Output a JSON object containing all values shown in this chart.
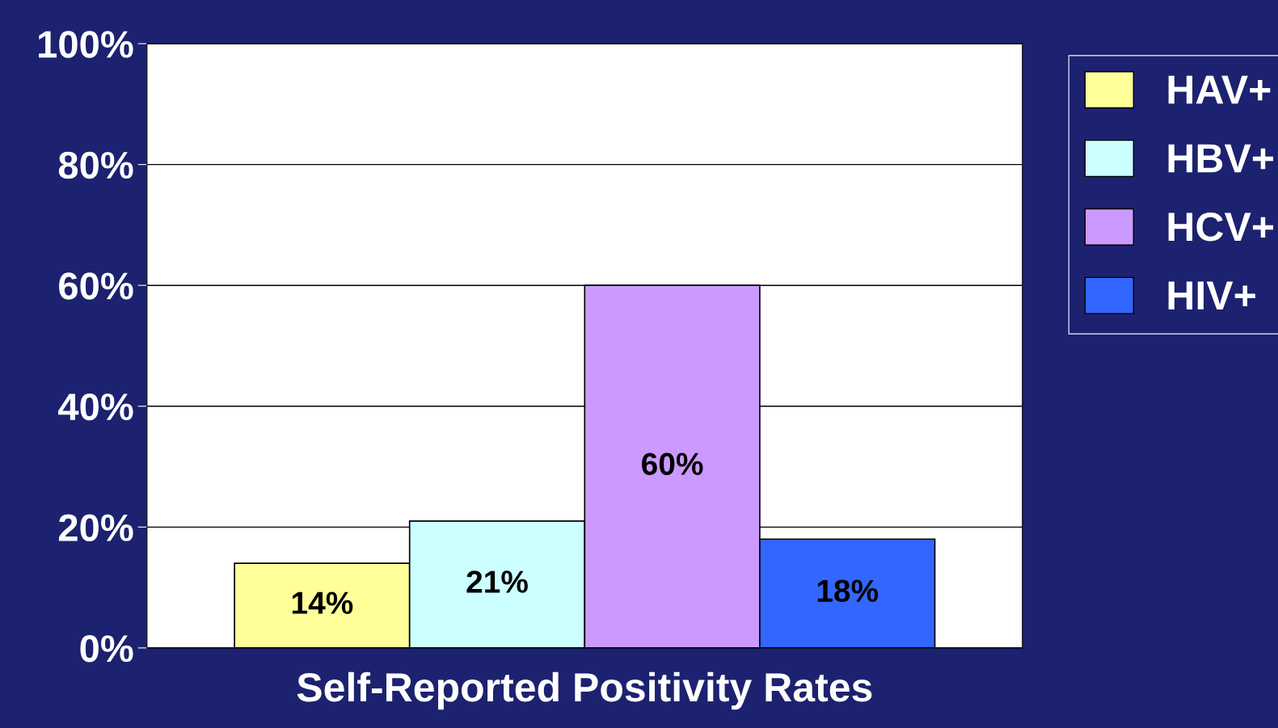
{
  "chart_data": {
    "type": "bar",
    "xlabel": "Self-Reported Positivity Rates",
    "categories": [
      null
    ],
    "series": [
      {
        "name": "HAV+",
        "color": "#ffff99",
        "values": [
          14
        ],
        "value_labels": [
          "14%"
        ]
      },
      {
        "name": "HBV+",
        "color": "#ccffff",
        "values": [
          21
        ],
        "value_labels": [
          "21%"
        ]
      },
      {
        "name": "HCV+",
        "color": "#cc99ff",
        "values": [
          60
        ],
        "value_labels": [
          "60%"
        ]
      },
      {
        "name": "HIV+",
        "color": "#3366ff",
        "values": [
          18
        ],
        "value_labels": [
          "18%"
        ]
      }
    ],
    "ylim": [
      0,
      100
    ],
    "yticks": [
      {
        "value": 0,
        "label": "0%"
      },
      {
        "value": 20,
        "label": "20%"
      },
      {
        "value": 40,
        "label": "40%"
      },
      {
        "value": 60,
        "label": "60%"
      },
      {
        "value": 80,
        "label": "80%"
      },
      {
        "value": 100,
        "label": "100%"
      }
    ],
    "grid": "y",
    "legend": "right"
  }
}
